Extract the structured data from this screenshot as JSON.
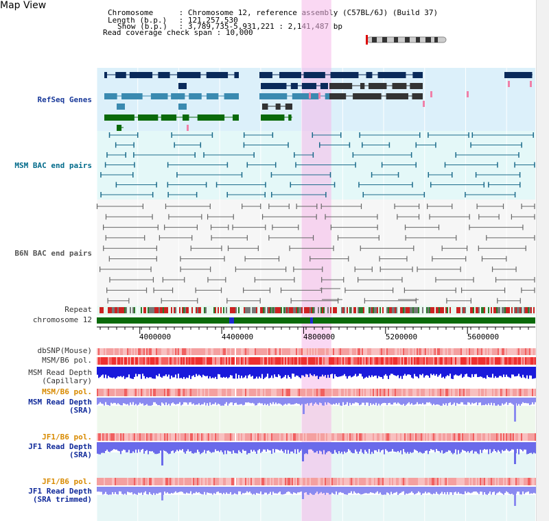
{
  "view_title": "Map View",
  "header": {
    "chromosome_key": "Chromosome",
    "chromosome_val": "Chromosome 12, reference assembly (C57BL/6J) (Build 37)",
    "length_key": "Length (b.p.)",
    "length_val": "121,257,530",
    "show_key": "Show (b.p.)",
    "show_val": "3,789,735-5,931,221 : 2,141,487 bp",
    "read_cov_key": "Read coverage check span",
    "read_cov_val": "10,000",
    "sep": ":"
  },
  "tracks": {
    "refseq": "RefSeq Genes",
    "msm_bac": "MSM BAC end pairs",
    "b6n_bac": "B6N BAC end pairs",
    "repeat": "Repeat",
    "chromosome": "chromosome 12",
    "dbsnp": "dbSNP(Mouse)",
    "msm_b6_pol": "MSM/B6 pol.",
    "msm_depth_cap_1": "MSM Read Depth",
    "msm_depth_cap_2": "(Capillary)",
    "msm_b6_pol_2": "MSM/B6 pol.",
    "msm_depth_sra_1": "MSM Read Depth",
    "msm_depth_sra_2": "(SRA)",
    "jf1_b6_pol": "JF1/B6 pol.",
    "jf1_depth_sra_1": "JF1 Read Depth",
    "jf1_depth_sra_2": "(SRA)",
    "jf1_b6_pol_2": "JF1/B6 pol.",
    "jf1_depth_trim_1": "JF1 Read Depth",
    "jf1_depth_trim_2": "(SRA trimmed)"
  },
  "axis": {
    "ticks": [
      "4000000",
      "4400000",
      "4800000",
      "5200000",
      "5600000"
    ],
    "tick_values": [
      4000000,
      4400000,
      4800000,
      5200000,
      5600000
    ],
    "range_start": 3789735,
    "range_end": 5931221
  },
  "highlight": {
    "start": 4790000,
    "end": 4935000
  },
  "colors": {
    "refseq_dark": "#0a2a5a",
    "refseq_mid": "#3a8ab0",
    "refseq_green": "#0a6a0a",
    "msm_bac": "#1a6a8a",
    "b6n_bac": "#666666",
    "highlight": "#f5b8ea",
    "chrom_green": "#0a6a0a",
    "depth_blue": "#1a1adb"
  }
}
